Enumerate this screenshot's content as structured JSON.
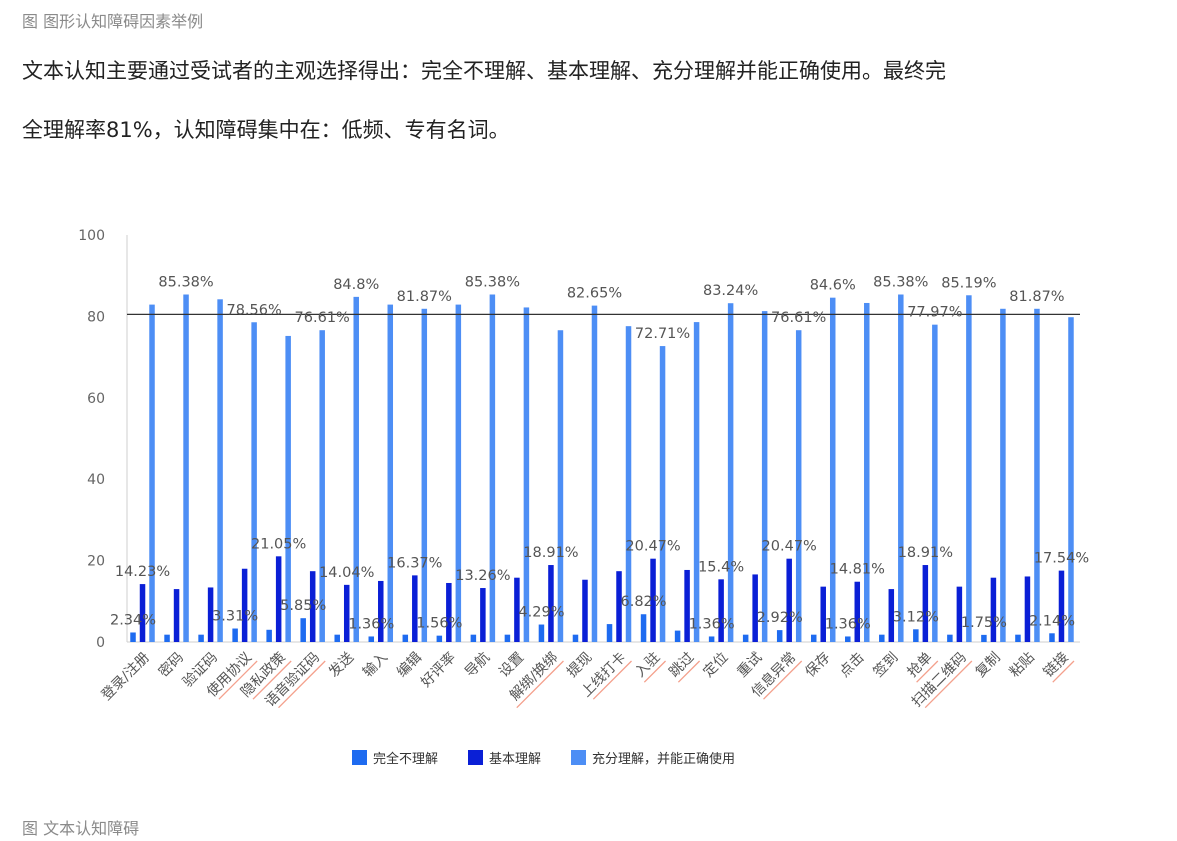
{
  "header": {
    "caption": "图 图形认知障碍因素举例",
    "paragraph_line1": "文本认知主要通过受试者的主观选择得出：完全不理解、基本理解、充分理解并能正确使用。最终完",
    "paragraph_line2": "全理解率81%，认知障碍集中在：低频、专有名词。"
  },
  "footer": {
    "caption": "图 文本认知障碍"
  },
  "colors": {
    "series1": "#1e6bf0",
    "series2": "#0a1fd6",
    "series3": "#4d8ef5",
    "underline": "#f4a08c",
    "axis_text": "#666666",
    "label_text": "#555555"
  },
  "chart_data": {
    "type": "bar",
    "ylim": [
      0,
      100
    ],
    "yticks": [
      "0",
      "20",
      "40",
      "60",
      "80",
      "100"
    ],
    "reference_line": 80.5,
    "grid": false,
    "legend_position": "bottom",
    "categories": [
      "登录/注册",
      "密码",
      "验证码",
      "使用协议",
      "隐私政策",
      "语音验证码",
      "发送",
      "输入",
      "编辑",
      "好评率",
      "导航",
      "设置",
      "解绑/换绑",
      "提现",
      "上线打卡",
      "入驻",
      "跳过",
      "定位",
      "重试",
      "信息异常",
      "保存",
      "点击",
      "签到",
      "抢单",
      "扫描二维码",
      "复制",
      "粘贴",
      "链接"
    ],
    "underlined_categories": [
      "使用协议",
      "隐私政策",
      "语音验证码",
      "解绑/换绑",
      "上线打卡",
      "入驻",
      "跳过",
      "信息异常",
      "抢单",
      "扫描二维码",
      "链接"
    ],
    "series": [
      {
        "name": "完全不理解",
        "values": [
          2.34,
          1.8,
          1.8,
          3.31,
          3.0,
          5.85,
          1.8,
          1.36,
          1.8,
          1.56,
          1.8,
          1.8,
          4.29,
          1.8,
          4.4,
          6.82,
          2.8,
          1.36,
          1.8,
          2.92,
          1.8,
          1.36,
          1.8,
          3.12,
          1.8,
          1.75,
          1.8,
          2.14
        ]
      },
      {
        "name": "基本理解",
        "values": [
          14.23,
          13.0,
          13.4,
          18.0,
          21.05,
          17.4,
          14.04,
          15.0,
          16.37,
          14.5,
          13.26,
          15.8,
          18.91,
          15.3,
          17.4,
          20.47,
          17.7,
          15.4,
          16.6,
          20.47,
          13.6,
          14.81,
          13.0,
          18.91,
          13.6,
          15.8,
          16.1,
          17.54
        ]
      },
      {
        "name": "充分理解，并能正确使用",
        "values": [
          82.9,
          85.38,
          84.2,
          78.56,
          75.2,
          76.61,
          84.8,
          82.9,
          81.87,
          82.9,
          85.38,
          82.2,
          76.6,
          82.65,
          77.6,
          72.71,
          78.6,
          83.24,
          81.3,
          76.61,
          84.6,
          83.3,
          85.38,
          77.97,
          85.19,
          81.87,
          81.87,
          79.8
        ]
      }
    ],
    "data_labels": [
      {
        "series": 2,
        "index": 1,
        "text": "85.38%"
      },
      {
        "series": 2,
        "index": 3,
        "text": "78.56%"
      },
      {
        "series": 2,
        "index": 5,
        "text": "76.61%"
      },
      {
        "series": 2,
        "index": 6,
        "text": "84.8%"
      },
      {
        "series": 2,
        "index": 8,
        "text": "81.87%"
      },
      {
        "series": 2,
        "index": 10,
        "text": "85.38%"
      },
      {
        "series": 2,
        "index": 13,
        "text": "82.65%"
      },
      {
        "series": 2,
        "index": 15,
        "text": "72.71%"
      },
      {
        "series": 2,
        "index": 17,
        "text": "83.24%"
      },
      {
        "series": 2,
        "index": 19,
        "text": "76.61%"
      },
      {
        "series": 2,
        "index": 20,
        "text": "84.6%"
      },
      {
        "series": 2,
        "index": 22,
        "text": "85.38%"
      },
      {
        "series": 2,
        "index": 23,
        "text": "77.97%"
      },
      {
        "series": 2,
        "index": 24,
        "text": "85.19%"
      },
      {
        "series": 2,
        "index": 26,
        "text": "81.87%"
      },
      {
        "series": 1,
        "index": 0,
        "text": "14.23%"
      },
      {
        "series": 1,
        "index": 4,
        "text": "21.05%"
      },
      {
        "series": 1,
        "index": 6,
        "text": "14.04%"
      },
      {
        "series": 1,
        "index": 8,
        "text": "16.37%"
      },
      {
        "series": 1,
        "index": 10,
        "text": "13.26%"
      },
      {
        "series": 1,
        "index": 12,
        "text": "18.91%"
      },
      {
        "series": 1,
        "index": 15,
        "text": "20.47%"
      },
      {
        "series": 1,
        "index": 17,
        "text": "15.4%"
      },
      {
        "series": 1,
        "index": 19,
        "text": "20.47%"
      },
      {
        "series": 1,
        "index": 21,
        "text": "14.81%"
      },
      {
        "series": 1,
        "index": 23,
        "text": "18.91%"
      },
      {
        "series": 1,
        "index": 27,
        "text": "17.54%"
      },
      {
        "series": 0,
        "index": 0,
        "text": "2.34%"
      },
      {
        "series": 0,
        "index": 3,
        "text": "3.31%"
      },
      {
        "series": 0,
        "index": 5,
        "text": "5.85%"
      },
      {
        "series": 0,
        "index": 7,
        "text": "1.36%"
      },
      {
        "series": 0,
        "index": 9,
        "text": "1.56%"
      },
      {
        "series": 0,
        "index": 12,
        "text": "4.29%"
      },
      {
        "series": 0,
        "index": 15,
        "text": "6.82%"
      },
      {
        "series": 0,
        "index": 17,
        "text": "1.36%"
      },
      {
        "series": 0,
        "index": 19,
        "text": "2.92%"
      },
      {
        "series": 0,
        "index": 21,
        "text": "1.36%"
      },
      {
        "series": 0,
        "index": 23,
        "text": "3.12%"
      },
      {
        "series": 0,
        "index": 25,
        "text": "1.75%"
      },
      {
        "series": 0,
        "index": 27,
        "text": "2.14%"
      }
    ]
  }
}
